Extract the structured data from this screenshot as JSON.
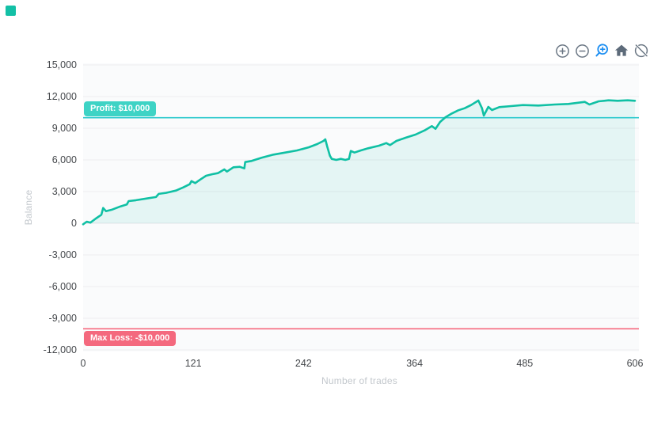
{
  "page": {
    "background": "#ffffff"
  },
  "logo": {
    "color": "#13c0a6"
  },
  "toolbar": {
    "icons": [
      {
        "name": "zoom-in",
        "glyph": "circle-plus",
        "color": "#6a7683",
        "active": false
      },
      {
        "name": "zoom-out",
        "glyph": "circle-minus",
        "color": "#6a7683",
        "active": false
      },
      {
        "name": "box-zoom",
        "glyph": "magnifier-plus",
        "color": "#1d8ff2",
        "active": true
      },
      {
        "name": "reset-view",
        "glyph": "home",
        "color": "#5d6b7a",
        "active": false
      },
      {
        "name": "toggle-series",
        "glyph": "eye-off",
        "color": "#6a7683",
        "active": false
      }
    ]
  },
  "chart_data": {
    "type": "area",
    "title": "",
    "xlabel": "Number of trades",
    "ylabel": "Balance",
    "x_ticks": [
      0,
      121,
      242,
      364,
      485,
      606
    ],
    "y_ticks": [
      15000,
      12000,
      9000,
      6000,
      3000,
      0,
      -3000,
      -6000,
      -9000,
      -12000
    ],
    "xlim": [
      0,
      606
    ],
    "ylim": [
      -12750,
      15150
    ],
    "grid": true,
    "legend": "none",
    "plot_bg": "#fafbfc",
    "grid_color": "#ededf0",
    "zero_line_color": "#e4e4e8",
    "series": [
      {
        "name": "Balance",
        "color": "#10c0a4",
        "fill": "rgba(16,192,164,0.09)",
        "x": [
          0,
          4,
          8,
          14,
          20,
          22,
          25,
          32,
          41,
          48,
          50,
          58,
          70,
          80,
          83,
          91,
          102,
          110,
          117,
          119,
          123,
          128,
          135,
          142,
          148,
          155,
          158,
          165,
          172,
          177,
          178,
          185,
          196,
          209,
          222,
          235,
          248,
          257,
          264,
          266,
          268,
          271,
          273,
          278,
          283,
          288,
          292,
          294,
          298,
          305,
          313,
          325,
          333,
          337,
          344,
          354,
          365,
          375,
          383,
          387,
          392,
          398,
          405,
          412,
          419,
          426,
          434,
          438,
          440,
          445,
          449,
          457,
          470,
          483,
          500,
          518,
          533,
          551,
          556,
          566,
          577,
          587,
          598,
          606
        ],
        "y": [
          -100,
          150,
          60,
          450,
          800,
          1450,
          1150,
          1300,
          1600,
          1780,
          2100,
          2180,
          2350,
          2480,
          2780,
          2880,
          3100,
          3400,
          3700,
          4000,
          3800,
          4100,
          4500,
          4650,
          4750,
          5100,
          4900,
          5300,
          5350,
          5200,
          5800,
          5900,
          6200,
          6500,
          6700,
          6900,
          7200,
          7500,
          7800,
          7950,
          7300,
          6400,
          6100,
          6000,
          6100,
          6000,
          6100,
          6850,
          6700,
          6900,
          7100,
          7350,
          7600,
          7400,
          7800,
          8100,
          8400,
          8800,
          9200,
          8950,
          9600,
          10050,
          10400,
          10700,
          10900,
          11200,
          11625,
          10900,
          10200,
          11025,
          10725,
          11000,
          11100,
          11200,
          11150,
          11250,
          11300,
          11500,
          11250,
          11550,
          11650,
          11600,
          11650,
          11600
        ]
      }
    ],
    "annotations": [
      {
        "label": "Profit: $10,000",
        "value": 10000,
        "line_color": "#2ac9cd",
        "badge_color": "#3ed3c5",
        "label_position": "above"
      },
      {
        "label": "Max Loss: -$10,000",
        "value": -10000,
        "line_color": "#f5697e",
        "badge_color": "#f4697e",
        "label_position": "below"
      }
    ]
  }
}
